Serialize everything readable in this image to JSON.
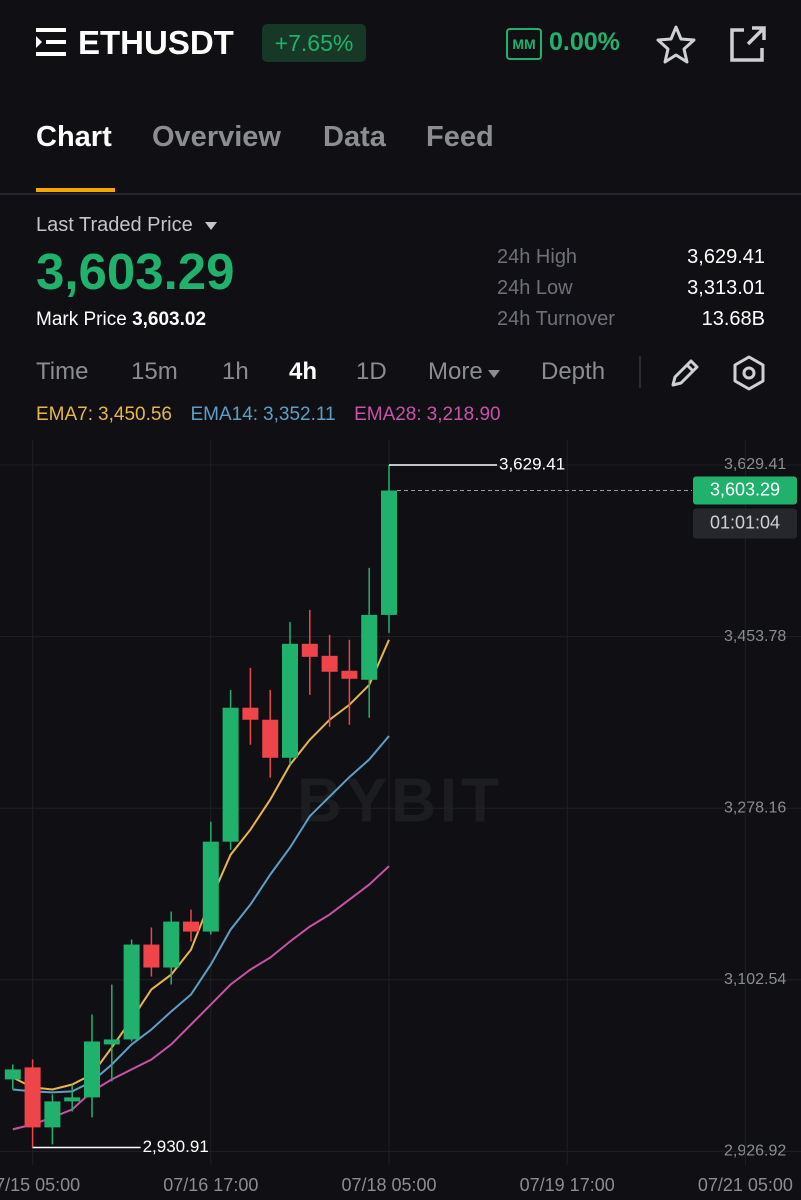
{
  "header": {
    "symbol": "ETHUSDT",
    "change": "+7.65%",
    "mm_badge": "MM",
    "mm_ratio": "0.00%"
  },
  "tabs": [
    "Chart",
    "Overview",
    "Data",
    "Feed"
  ],
  "price_panel": {
    "label": "Last Traded Price",
    "last_price": "3,603.29",
    "mark_label": "Mark Price",
    "mark_price": "3,603.02",
    "stats": [
      {
        "label": "24h High",
        "value": "3,629.41"
      },
      {
        "label": "24h Low",
        "value": "3,313.01"
      },
      {
        "label": "24h Turnover",
        "value": "13.68B"
      }
    ]
  },
  "toolbar": {
    "intervals": [
      "Time",
      "15m",
      "1h",
      "4h",
      "1D",
      "More"
    ],
    "depth": "Depth"
  },
  "chart_data": {
    "type": "candlestick",
    "watermark": "BYBIT",
    "categories": [
      null,
      "07/15 05:00",
      null,
      null,
      null,
      null,
      null,
      null,
      null,
      null,
      "07/16 17:00",
      null,
      null,
      null,
      null,
      null,
      null,
      null,
      null,
      "07/18 05:00",
      null,
      null,
      null,
      null,
      null,
      null,
      null,
      null,
      "07/19 17:00",
      null,
      null,
      null,
      null,
      null,
      null,
      null,
      null,
      "07/21 05:00"
    ],
    "open": [
      3000.6,
      3012.9,
      2951.5,
      2978.1,
      2982.2,
      3036.4,
      3041.5,
      3138.6,
      3115.1,
      3162.1,
      3151.9,
      3243.9,
      3381.0,
      3368.7,
      3329.8,
      3446.4,
      3434.1,
      3418.8,
      3409.6,
      3476.0,
      null,
      null,
      null,
      null,
      null,
      null,
      null,
      null,
      null,
      null,
      null,
      null,
      null,
      null,
      null,
      null,
      null,
      null
    ],
    "high": [
      3015.9,
      3021.0,
      2985.3,
      2995.4,
      3067.0,
      3097.7,
      3143.8,
      3156.0,
      3172.4,
      3174.4,
      3264.4,
      3399.3,
      3421.8,
      3399.3,
      3468.9,
      3481.1,
      3455.6,
      3450.5,
      3524.1,
      3629.41,
      null,
      null,
      null,
      null,
      null,
      null,
      null,
      null,
      null,
      null,
      null,
      null,
      null,
      null,
      null,
      null,
      null,
      null
    ],
    "low": [
      2990.3,
      2930.91,
      2934.1,
      2967.8,
      2961.7,
      2998.5,
      3039.4,
      3105.9,
      3097.7,
      3141.7,
      3148.8,
      3235.7,
      3343.1,
      3309.4,
      3322.7,
      3394.2,
      3361.5,
      3363.6,
      3370.7,
      3457.6,
      null,
      null,
      null,
      null,
      null,
      null,
      null,
      null,
      null,
      null,
      null,
      null,
      null,
      null,
      null,
      null,
      null,
      null
    ],
    "close": [
      3010.8,
      2951.5,
      2978.1,
      2982.2,
      3039.4,
      3041.5,
      3138.6,
      3115.1,
      3162.1,
      3151.9,
      3243.9,
      3381.0,
      3368.7,
      3329.8,
      3446.4,
      3433.1,
      3417.8,
      3410.6,
      3476.0,
      3603.29,
      null,
      null,
      null,
      null,
      null,
      null,
      null,
      null,
      null,
      null,
      null,
      null,
      null,
      null,
      null,
      null,
      null,
      null
    ],
    "up_color": "#20b26c",
    "down_color": "#ef454a",
    "series": [
      {
        "name": "EMA7",
        "legend_value": "3,450.56",
        "color": "#e8b54a",
        "values": [
          3002.6,
          2992.4,
          2990.3,
          2995.4,
          3005.7,
          3033.3,
          3062.0,
          3092.6,
          3107.9,
          3133.5,
          3184.6,
          3230.6,
          3256.2,
          3286.9,
          3322.7,
          3348.2,
          3368.7,
          3384.0,
          3404.4,
          3450.56,
          null,
          null,
          null,
          null,
          null,
          null,
          null,
          null,
          null,
          null,
          null,
          null,
          null,
          null,
          null,
          null,
          null,
          null
        ]
      },
      {
        "name": "EMA14",
        "legend_value": "3,352.11",
        "color": "#5f9ec6",
        "values": [
          2990.3,
          2988.3,
          2987.3,
          2988.3,
          2998.5,
          3015.9,
          3036.4,
          3051.7,
          3070.1,
          3087.5,
          3118.1,
          3153.9,
          3179.5,
          3210.2,
          3237.8,
          3270.0,
          3290.0,
          3310.0,
          3328.0,
          3352.11,
          null,
          null,
          null,
          null,
          null,
          null,
          null,
          null,
          null,
          null,
          null,
          null,
          null,
          null,
          null,
          null,
          null,
          null
        ]
      },
      {
        "name": "EMA28",
        "legend_value": "3,218.90",
        "color": "#c852a8",
        "values": [
          2949.4,
          2954.6,
          2961.7,
          2969.9,
          2988.3,
          3000.6,
          3010.8,
          3021.0,
          3036.4,
          3056.8,
          3077.2,
          3097.7,
          3113.0,
          3125.3,
          3141.7,
          3157.0,
          3169.3,
          3184.6,
          3200.0,
          3218.9,
          null,
          null,
          null,
          null,
          null,
          null,
          null,
          null,
          null,
          null,
          null,
          null,
          null,
          null,
          null,
          null,
          null,
          null
        ]
      }
    ],
    "ylim": [
      2913,
      3655
    ],
    "yticks": [
      {
        "value": 2926.92,
        "label": "2,926.92"
      },
      {
        "value": 3102.54,
        "label": "3,102.54"
      },
      {
        "value": 3278.16,
        "label": "3,278.16"
      },
      {
        "value": 3453.78,
        "label": "3,453.78"
      },
      {
        "value": 3629.41,
        "label": "3,629.41"
      }
    ],
    "grid": true,
    "annotations": [
      {
        "kind": "high",
        "value": 3629.41,
        "label": "3,629.41"
      },
      {
        "kind": "low",
        "value": 2930.91,
        "label": "2,930.91"
      }
    ],
    "price_line": {
      "value": 3603.29,
      "label": "3,603.29",
      "countdown": "01:01:04"
    }
  }
}
